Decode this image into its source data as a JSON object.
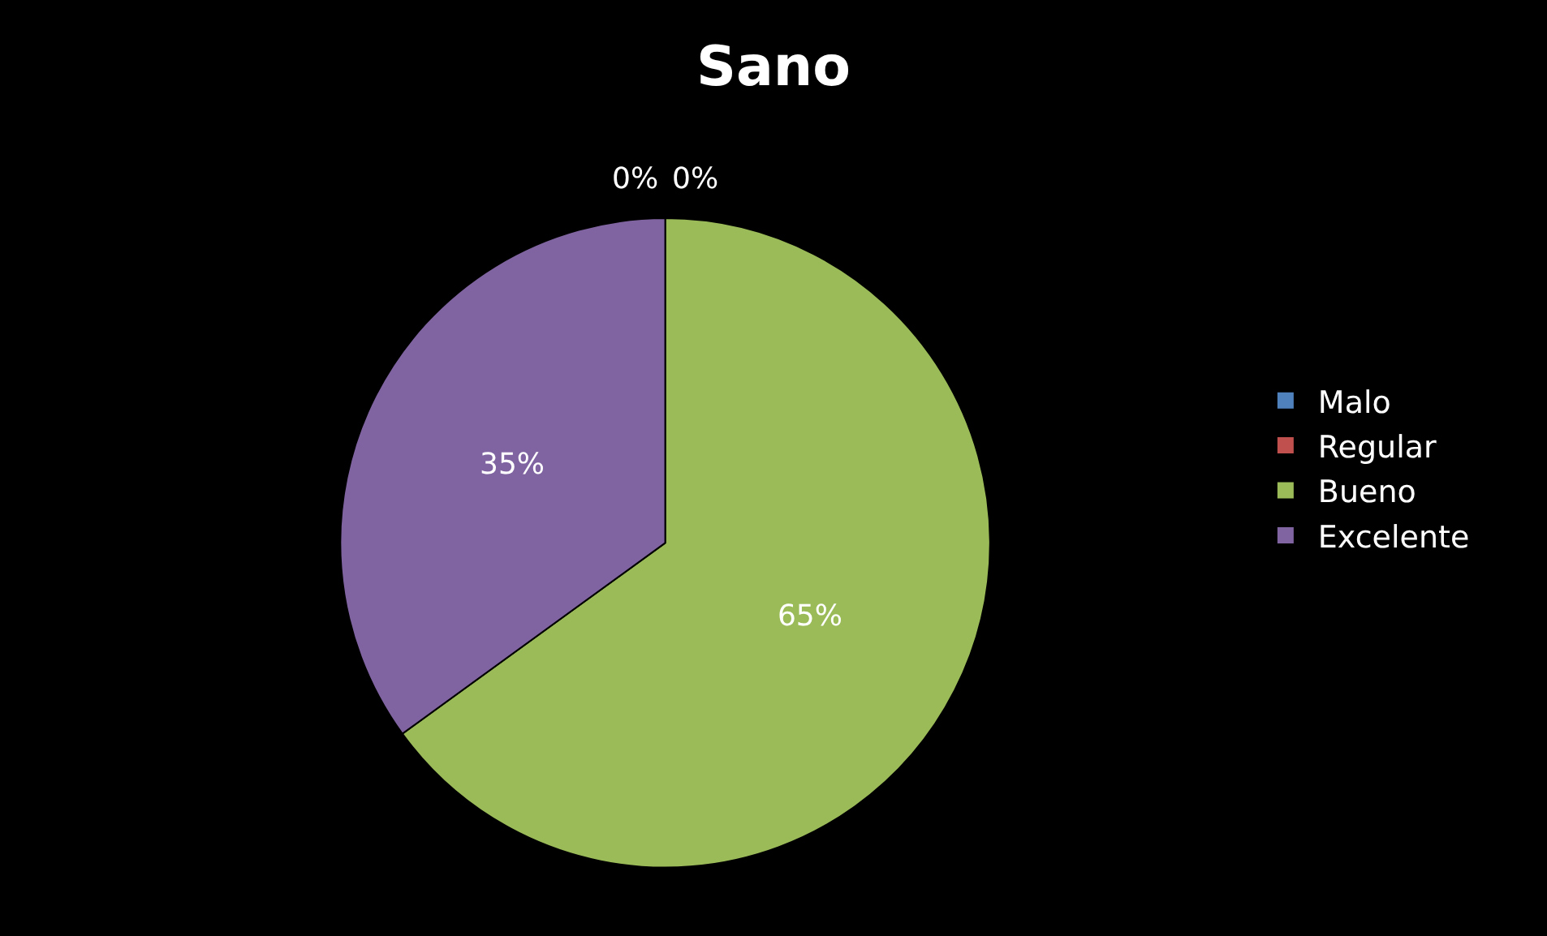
{
  "chart_data": {
    "type": "pie",
    "title": "Sano",
    "categories": [
      "Malo",
      "Regular",
      "Bueno",
      "Excelente"
    ],
    "values": [
      0,
      0,
      65,
      35
    ],
    "colors": [
      "#4f81bd",
      "#c0504d",
      "#9bbb59",
      "#8064a2"
    ],
    "value_labels": [
      "0%",
      "0%",
      "65%",
      "35%"
    ],
    "legend": "right"
  }
}
